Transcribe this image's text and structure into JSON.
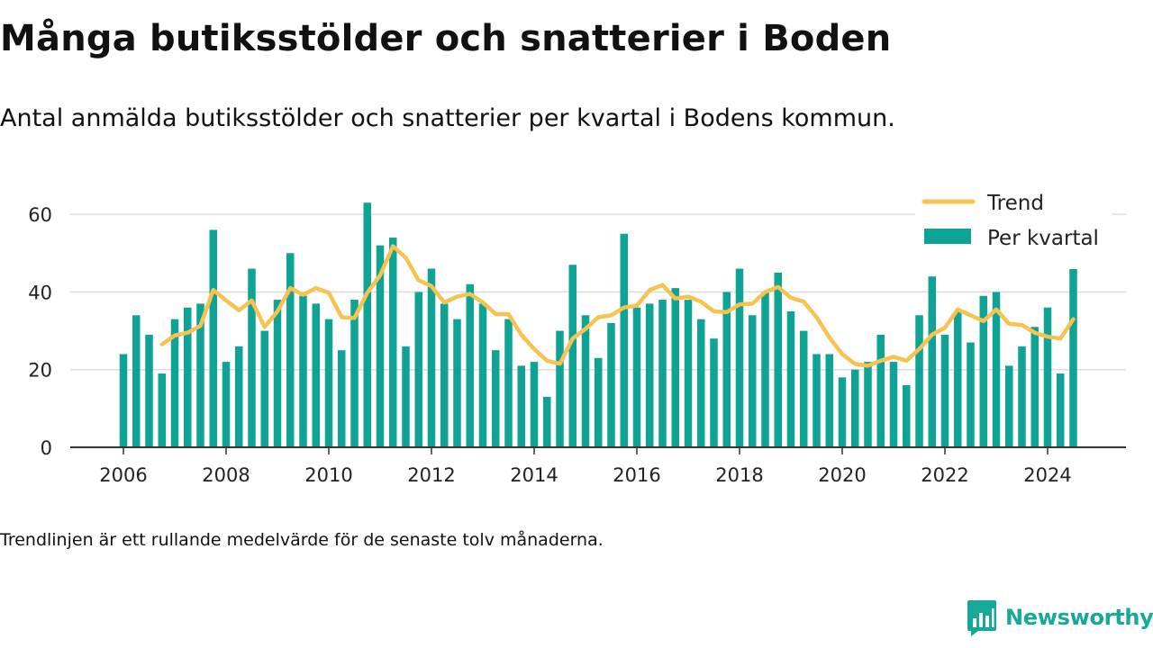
{
  "title": "Många butiksstölder och snatterier i Boden",
  "subtitle": "Antal anmälda butiksstölder och snatterier per kvartal i Bodens kommun.",
  "footnote": "Trendlinjen är ett rullande medelvärde för de senaste tolv månaderna.",
  "brand": {
    "name": "Newsworthy",
    "icon": "newsworthy-logo-icon"
  },
  "colors": {
    "bars": "#0fa396",
    "trend": "#f6c350",
    "axis": "#333333",
    "grid": "#dddddd",
    "text": "#222222"
  },
  "chart_data": {
    "type": "bar",
    "title": "",
    "xlabel": "",
    "ylabel": "",
    "ylim": [
      0,
      70
    ],
    "yticks": [
      "0",
      "20",
      "40",
      "60"
    ],
    "xticks": [
      "2006",
      "2008",
      "2010",
      "2012",
      "2014",
      "2016",
      "2018",
      "2020",
      "2022",
      "2024"
    ],
    "grid": true,
    "legend_position": "top-right",
    "categories": [
      "2006 Q1",
      "2006 Q2",
      "2006 Q3",
      "2006 Q4",
      "2007 Q1",
      "2007 Q2",
      "2007 Q3",
      "2007 Q4",
      "2008 Q1",
      "2008 Q2",
      "2008 Q3",
      "2008 Q4",
      "2009 Q1",
      "2009 Q2",
      "2009 Q3",
      "2009 Q4",
      "2010 Q1",
      "2010 Q2",
      "2010 Q3",
      "2010 Q4",
      "2011 Q1",
      "2011 Q2",
      "2011 Q3",
      "2011 Q4",
      "2012 Q1",
      "2012 Q2",
      "2012 Q3",
      "2012 Q4",
      "2013 Q1",
      "2013 Q2",
      "2013 Q3",
      "2013 Q4",
      "2014 Q1",
      "2014 Q2",
      "2014 Q3",
      "2014 Q4",
      "2015 Q1",
      "2015 Q2",
      "2015 Q3",
      "2015 Q4",
      "2016 Q1",
      "2016 Q2",
      "2016 Q3",
      "2016 Q4",
      "2017 Q1",
      "2017 Q2",
      "2017 Q3",
      "2017 Q4",
      "2018 Q1",
      "2018 Q2",
      "2018 Q3",
      "2018 Q4",
      "2019 Q1",
      "2019 Q2",
      "2019 Q3",
      "2019 Q4",
      "2020 Q1",
      "2020 Q2",
      "2020 Q3",
      "2020 Q4",
      "2021 Q1",
      "2021 Q2",
      "2021 Q3",
      "2021 Q4",
      "2022 Q1",
      "2022 Q2",
      "2022 Q3",
      "2022 Q4",
      "2023 Q1",
      "2023 Q2",
      "2023 Q3",
      "2023 Q4",
      "2024 Q1",
      "2024 Q2",
      "2024 Q3"
    ],
    "series": [
      {
        "name": "Per kvartal",
        "type": "bar",
        "values": [
          24,
          34,
          29,
          19,
          33,
          36,
          37,
          56,
          22,
          26,
          46,
          30,
          38,
          50,
          39,
          37,
          33,
          25,
          38,
          63,
          52,
          54,
          26,
          40,
          46,
          37,
          33,
          42,
          37,
          25,
          33,
          21,
          22,
          13,
          30,
          47,
          34,
          23,
          32,
          55,
          36,
          37,
          38,
          41,
          38,
          33,
          28,
          40,
          46,
          34,
          40,
          45,
          35,
          30,
          24,
          24,
          18,
          20,
          22,
          29,
          22,
          16,
          34,
          44,
          29,
          35,
          27,
          39,
          40,
          21,
          26,
          31,
          36,
          19,
          46
        ]
      },
      {
        "name": "Trend",
        "type": "line",
        "values": [
          null,
          null,
          null,
          26.5,
          28.8,
          29.5,
          31.3,
          40.5,
          37.8,
          35.3,
          37.8,
          31.0,
          35.0,
          41.0,
          39.3,
          41.0,
          39.8,
          33.5,
          33.3,
          39.8,
          44.3,
          51.8,
          48.8,
          43.0,
          41.5,
          37.3,
          38.8,
          39.5,
          37.3,
          34.3,
          34.3,
          29.0,
          25.3,
          22.3,
          21.5,
          28.0,
          30.5,
          33.5,
          34.0,
          36.0,
          36.5,
          40.5,
          41.8,
          38.3,
          38.8,
          37.5,
          35.0,
          34.8,
          36.8,
          37.0,
          40.0,
          41.3,
          38.5,
          37.5,
          33.5,
          28.3,
          24.0,
          21.5,
          21.0,
          22.3,
          23.3,
          22.3,
          25.3,
          29.0,
          30.8,
          35.5,
          34.0,
          32.5,
          35.5,
          31.8,
          31.5,
          29.5,
          28.5,
          28.0,
          33.0
        ]
      }
    ]
  }
}
